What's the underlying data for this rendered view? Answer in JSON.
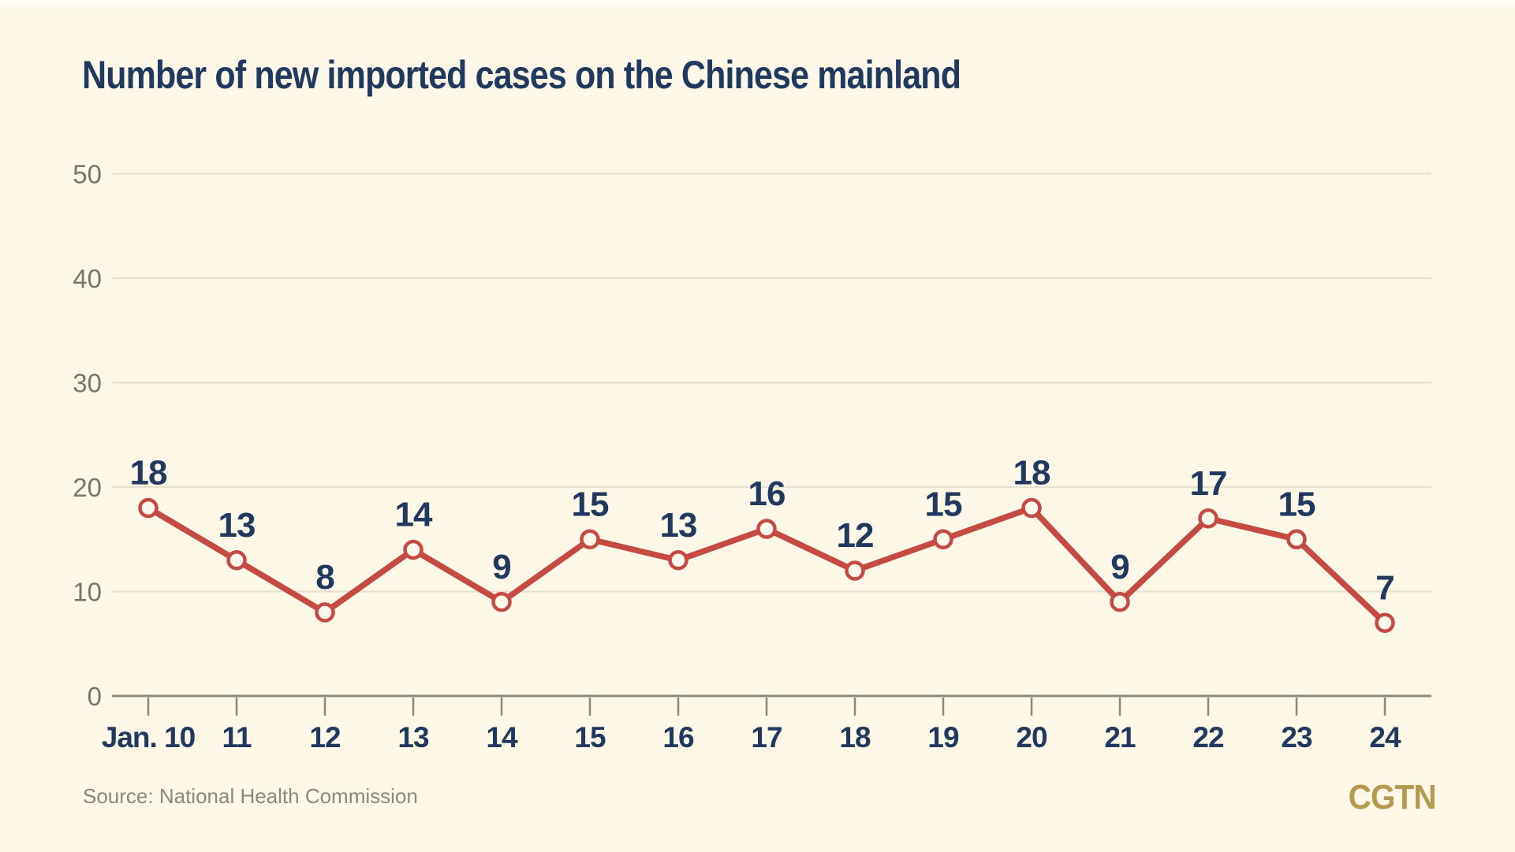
{
  "title": "Number of new imported cases on the Chinese mainland",
  "source": "Source: National Health Commission",
  "brand": "CGTN",
  "colors": {
    "background": "#FCF7E7",
    "title_navy": "#22395F",
    "line_red": "#C44A42",
    "marker_fill": "#FCF8EC",
    "grid": "#E5E0D0",
    "axis_gray": "#8B887C",
    "ytick_gray": "#76746B",
    "source_gray": "#8A8781",
    "brand_gold": "#B4994E"
  },
  "chart_data": {
    "type": "line",
    "title": "Number of new imported cases on the Chinese mainland",
    "x": [
      "Jan. 10",
      "11",
      "12",
      "13",
      "14",
      "15",
      "16",
      "17",
      "18",
      "19",
      "20",
      "21",
      "22",
      "23",
      "24"
    ],
    "values": [
      18,
      13,
      8,
      14,
      9,
      15,
      13,
      16,
      12,
      15,
      18,
      9,
      17,
      15,
      7
    ],
    "xlabel": "",
    "ylabel": "",
    "ylim": [
      0,
      50
    ],
    "yticks": [
      0,
      10,
      20,
      30,
      40,
      50
    ],
    "grid": true,
    "legend": "none",
    "marker": "open-circle",
    "data_labels": true,
    "source": "Source: National Health Commission"
  }
}
